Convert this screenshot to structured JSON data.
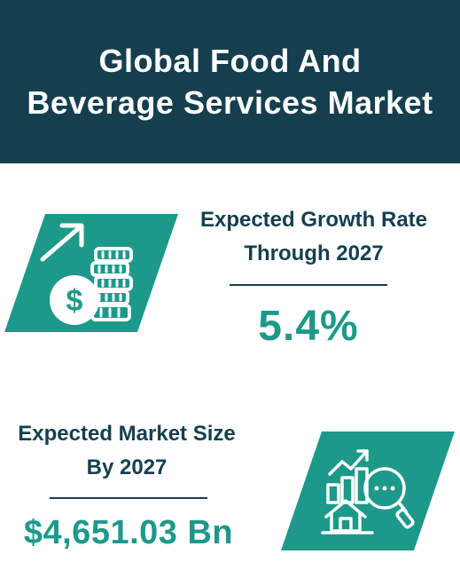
{
  "header": {
    "title": "Global Food And Beverage Services Market"
  },
  "stats": [
    {
      "label": "Expected Growth Rate Through 2027",
      "value": "5.4%",
      "icon": "money-growth-icon"
    },
    {
      "label": "Expected Market Size By 2027",
      "value": "$4,651.03 Bn",
      "icon": "market-analysis-icon"
    }
  ],
  "colors": {
    "header_bg": "#153f4f",
    "accent": "#1d998a",
    "text_dark": "#153f4f",
    "background": "#ffffff"
  }
}
